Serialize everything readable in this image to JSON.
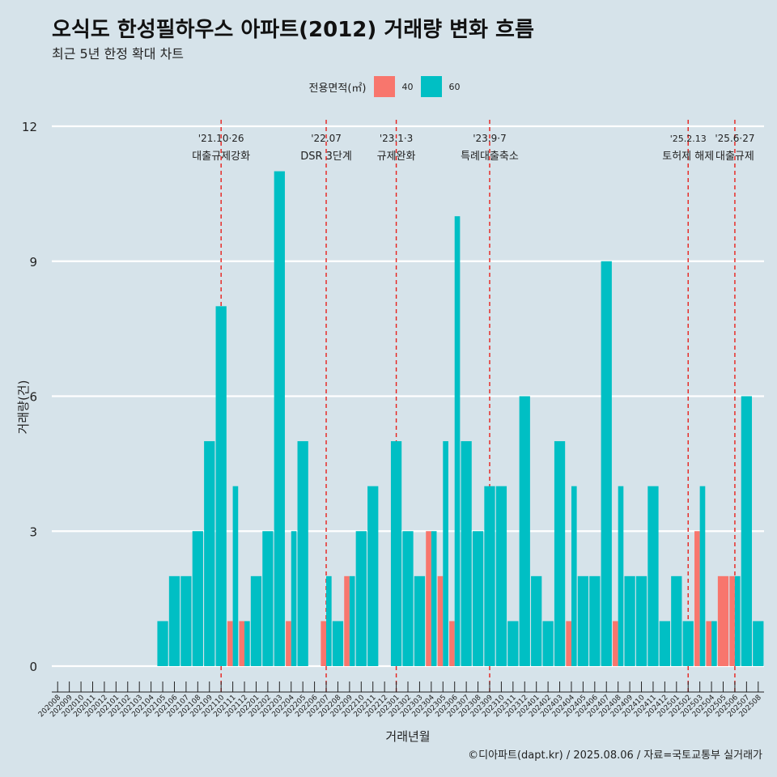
{
  "header": {
    "title": "오식도 한성필하우스 아파트(2012) 거래량 변화 흐름",
    "subtitle": "최근 5년 한정 확대 차트"
  },
  "legend": {
    "title": "전용면적(㎡)",
    "items": [
      {
        "label": "40",
        "color": "#f8766d"
      },
      {
        "label": "60",
        "color": "#00bfc4"
      }
    ]
  },
  "caption": "©디아파트(dapt.kr) / 2025.08.06 / 자료=국토교통부 실거래가",
  "chart_data": {
    "type": "bar",
    "stacked": false,
    "xlabel": "거래년월",
    "ylabel": "거래량(건)",
    "ylim": [
      0,
      12
    ],
    "yticks": [
      0,
      3,
      6,
      9,
      12
    ],
    "grid": true,
    "legend_position": "top",
    "categories": [
      "202008",
      "202009",
      "202010",
      "202011",
      "202012",
      "202101",
      "202102",
      "202103",
      "202104",
      "202105",
      "202106",
      "202107",
      "202108",
      "202109",
      "202110",
      "202111",
      "202112",
      "202201",
      "202202",
      "202203",
      "202204",
      "202205",
      "202206",
      "202207",
      "202208",
      "202209",
      "202210",
      "202211",
      "202212",
      "202301",
      "202302",
      "202303",
      "202304",
      "202305",
      "202306",
      "202307",
      "202308",
      "202309",
      "202310",
      "202311",
      "202312",
      "202401",
      "202402",
      "202403",
      "202404",
      "202405",
      "202406",
      "202407",
      "202408",
      "202409",
      "202410",
      "202411",
      "202412",
      "202501",
      "202502",
      "202503",
      "202504",
      "202505",
      "202506",
      "202507",
      "202508"
    ],
    "series": [
      {
        "name": "40",
        "color": "#f8766d",
        "values": [
          0,
          0,
          0,
          0,
          0,
          0,
          0,
          0,
          0,
          0,
          0,
          0,
          0,
          0,
          0,
          1,
          1,
          0,
          0,
          0,
          1,
          0,
          0,
          1,
          0,
          2,
          0,
          0,
          0,
          0,
          0,
          0,
          3,
          2,
          1,
          0,
          0,
          0,
          0,
          0,
          0,
          0,
          0,
          0,
          1,
          0,
          0,
          0,
          1,
          0,
          0,
          0,
          0,
          0,
          0,
          3,
          1,
          2,
          2,
          0,
          0
        ]
      },
      {
        "name": "60",
        "color": "#00bfc4",
        "values": [
          0,
          0,
          0,
          0,
          0,
          0,
          0,
          0,
          0,
          1,
          2,
          2,
          3,
          5,
          8,
          4,
          1,
          2,
          3,
          11,
          3,
          5,
          0,
          2,
          1,
          2,
          3,
          4,
          0,
          5,
          3,
          2,
          3,
          5,
          10,
          5,
          3,
          4,
          4,
          1,
          6,
          2,
          1,
          5,
          4,
          2,
          2,
          9,
          4,
          2,
          2,
          4,
          1,
          2,
          1,
          4,
          1,
          0,
          2,
          6,
          1
        ]
      }
    ],
    "events": [
      {
        "category": "202110",
        "date": "'21.10·26",
        "label": "대출규제강화"
      },
      {
        "category": "202207",
        "date": "'22.07",
        "label": "DSR 3단계"
      },
      {
        "category": "202301",
        "date": "'23.1·3",
        "label": "규제완화"
      },
      {
        "category": "202309",
        "date": "'23.9·7",
        "label": "특례대출축소"
      },
      {
        "category": "202502",
        "date": "'25.2.13",
        "label": "토허제 해제"
      },
      {
        "category": "202506",
        "date": "'25.6·27",
        "label": "대출규제"
      }
    ]
  }
}
